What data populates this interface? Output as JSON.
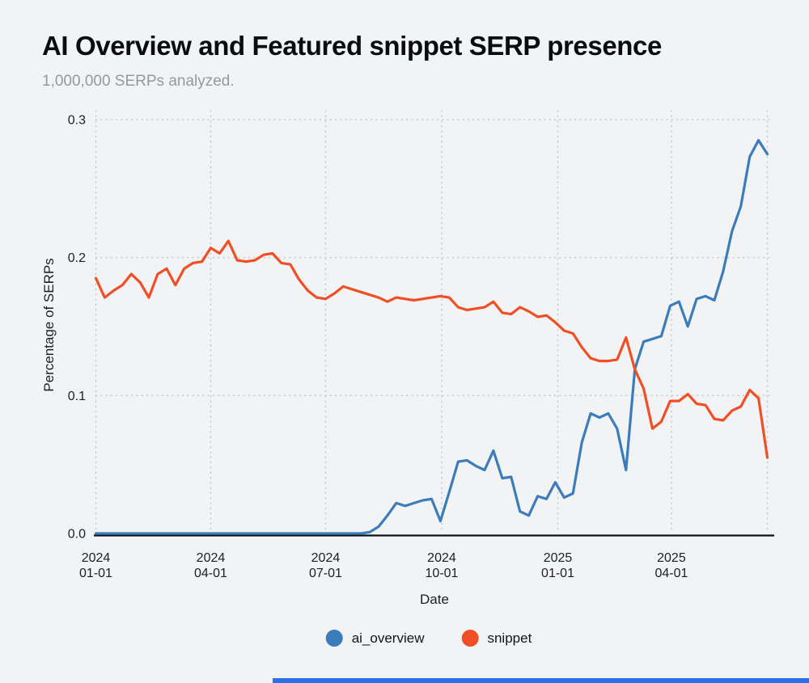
{
  "page": {
    "background": "#f2f3f5"
  },
  "header": {
    "title": "AI Overview and Featured snippet SERP presence",
    "subtitle": "1,000,000 SERPs analyzed."
  },
  "chart_data": {
    "type": "line",
    "title": "AI Overview and Featured snippet SERP presence",
    "subtitle": "1,000,000 SERPs analyzed.",
    "xlabel": "Date",
    "ylabel": "Percentage of SERPs",
    "ylim": [
      0,
      0.3
    ],
    "grid": "dotted",
    "legend_position": "bottom",
    "x": [
      "2024-01-01",
      "2024-01-08",
      "2024-01-15",
      "2024-01-22",
      "2024-01-29",
      "2024-02-05",
      "2024-02-12",
      "2024-02-19",
      "2024-02-26",
      "2024-03-04",
      "2024-03-11",
      "2024-03-18",
      "2024-03-25",
      "2024-04-01",
      "2024-04-08",
      "2024-04-15",
      "2024-04-22",
      "2024-04-29",
      "2024-05-06",
      "2024-05-13",
      "2024-05-20",
      "2024-05-27",
      "2024-06-03",
      "2024-06-10",
      "2024-06-17",
      "2024-06-24",
      "2024-07-01",
      "2024-07-08",
      "2024-07-15",
      "2024-07-22",
      "2024-07-29",
      "2024-08-05",
      "2024-08-12",
      "2024-08-19",
      "2024-08-26",
      "2024-09-02",
      "2024-09-09",
      "2024-09-16",
      "2024-09-23",
      "2024-09-30",
      "2024-10-07",
      "2024-10-14",
      "2024-10-21",
      "2024-10-28",
      "2024-11-04",
      "2024-11-11",
      "2024-11-18",
      "2024-11-25",
      "2024-12-02",
      "2024-12-09",
      "2024-12-16",
      "2024-12-23",
      "2024-12-30",
      "2025-01-06",
      "2025-01-13",
      "2025-01-20",
      "2025-01-27",
      "2025-02-03",
      "2025-02-10",
      "2025-02-17",
      "2025-02-24",
      "2025-03-03",
      "2025-03-10",
      "2025-03-17",
      "2025-03-24",
      "2025-03-31",
      "2025-04-07",
      "2025-04-14",
      "2025-04-21",
      "2025-04-28",
      "2025-05-05",
      "2025-05-12",
      "2025-05-19",
      "2025-05-26",
      "2025-06-02",
      "2025-06-09",
      "2025-06-16"
    ],
    "series": [
      {
        "name": "ai_overview",
        "color": "#3d7cba",
        "values": [
          0,
          0,
          0,
          0,
          0,
          0,
          0,
          0,
          0,
          0,
          0,
          0,
          0,
          0,
          0,
          0,
          0,
          0,
          0,
          0,
          0,
          0,
          0,
          0,
          0,
          0,
          0,
          0,
          0,
          0,
          0,
          0.001,
          0.005,
          0.013,
          0.022,
          0.02,
          0.022,
          0.024,
          0.025,
          0.009,
          0.03,
          0.052,
          0.053,
          0.049,
          0.046,
          0.06,
          0.04,
          0.041,
          0.016,
          0.013,
          0.027,
          0.025,
          0.037,
          0.026,
          0.029,
          0.066,
          0.087,
          0.084,
          0.087,
          0.076,
          0.046,
          0.119,
          0.139,
          0.141,
          0.143,
          0.165,
          0.168,
          0.15,
          0.17,
          0.172,
          0.169,
          0.19,
          0.219,
          0.237,
          0.273,
          0.285,
          0.275
        ]
      },
      {
        "name": "snippet",
        "color": "#f04f26",
        "values": [
          0.185,
          0.171,
          0.176,
          0.18,
          0.188,
          0.182,
          0.171,
          0.188,
          0.192,
          0.18,
          0.192,
          0.196,
          0.197,
          0.207,
          0.203,
          0.212,
          0.198,
          0.197,
          0.198,
          0.202,
          0.203,
          0.196,
          0.195,
          0.184,
          0.176,
          0.171,
          0.17,
          0.174,
          0.179,
          0.177,
          0.175,
          0.173,
          0.171,
          0.168,
          0.171,
          0.17,
          0.169,
          0.17,
          0.171,
          0.172,
          0.171,
          0.164,
          0.162,
          0.163,
          0.164,
          0.168,
          0.16,
          0.159,
          0.164,
          0.161,
          0.157,
          0.158,
          0.153,
          0.147,
          0.145,
          0.135,
          0.127,
          0.125,
          0.125,
          0.126,
          0.142,
          0.119,
          0.105,
          0.076,
          0.081,
          0.096,
          0.096,
          0.101,
          0.094,
          0.093,
          0.083,
          0.082,
          0.089,
          0.092,
          0.104,
          0.098,
          0.055
        ]
      }
    ],
    "yticks": [
      {
        "v": 0.0,
        "label": "0.0"
      },
      {
        "v": 0.1,
        "label": "0.1"
      },
      {
        "v": 0.2,
        "label": "0.2"
      },
      {
        "v": 0.3,
        "label": "0.3"
      }
    ],
    "xticks": [
      {
        "date": "2024-01-01",
        "year": "2024",
        "md": "01-01"
      },
      {
        "date": "2024-04-01",
        "year": "2024",
        "md": "04-01"
      },
      {
        "date": "2024-07-01",
        "year": "2024",
        "md": "07-01"
      },
      {
        "date": "2024-10-01",
        "year": "2024",
        "md": "10-01"
      },
      {
        "date": "2025-01-01",
        "year": "2025",
        "md": "01-01"
      },
      {
        "date": "2025-04-01",
        "year": "2025",
        "md": "04-01"
      }
    ],
    "edge_grid_date": "2025-06-16",
    "grid_color": "#c6c7cb",
    "axis_color": "#101114"
  },
  "legend": {
    "items": [
      {
        "label": "ai_overview",
        "color": "#3d7cba"
      },
      {
        "label": "snippet",
        "color": "#f04f26"
      }
    ]
  },
  "bottom_bar": {
    "color": "#2b72e8"
  }
}
